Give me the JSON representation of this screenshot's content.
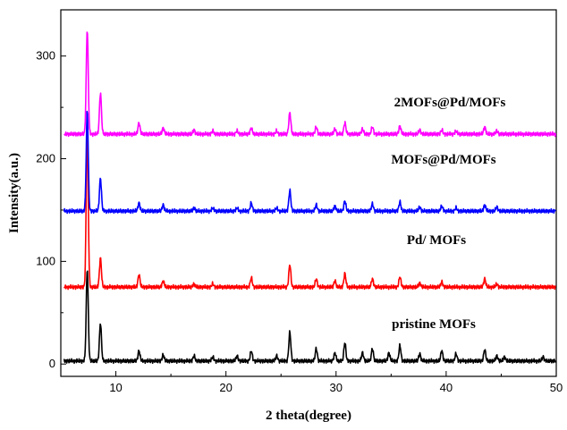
{
  "chart_data": {
    "type": "line",
    "title": "",
    "xlabel": "2 theta(degree)",
    "ylabel": "Intensity(a.u.)",
    "xlim": [
      5,
      50
    ],
    "ylim": [
      -12,
      345
    ],
    "xticks": [
      10,
      20,
      30,
      40,
      50
    ],
    "yticks": [
      0,
      100,
      200,
      300
    ],
    "grid": false,
    "legend": "inline labels beside each curve",
    "series": [
      {
        "name": "pristine MOFs",
        "label": "pristine MOFs",
        "color": "#000000",
        "baseline": 3,
        "peaks": [
          [
            7.4,
            90
          ],
          [
            8.6,
            37
          ],
          [
            12.1,
            10
          ],
          [
            14.3,
            6
          ],
          [
            17.1,
            5
          ],
          [
            18.8,
            4
          ],
          [
            21.0,
            5
          ],
          [
            22.3,
            10
          ],
          [
            24.6,
            5
          ],
          [
            25.8,
            28
          ],
          [
            28.2,
            12
          ],
          [
            29.9,
            8
          ],
          [
            30.8,
            18
          ],
          [
            32.4,
            8
          ],
          [
            33.3,
            12
          ],
          [
            34.8,
            8
          ],
          [
            35.8,
            15
          ],
          [
            37.6,
            7
          ],
          [
            39.6,
            10
          ],
          [
            40.9,
            7
          ],
          [
            43.5,
            11
          ],
          [
            44.6,
            5
          ],
          [
            45.3,
            4
          ],
          [
            48.8,
            4
          ]
        ]
      },
      {
        "name": "Pd/ MOFs",
        "label": "Pd/ MOFs",
        "color": "#ff0000",
        "baseline": 75,
        "peaks": [
          [
            7.4,
            155
          ],
          [
            8.6,
            28
          ],
          [
            12.1,
            12
          ],
          [
            14.3,
            6
          ],
          [
            17.1,
            3
          ],
          [
            18.8,
            3
          ],
          [
            22.3,
            9
          ],
          [
            25.8,
            22
          ],
          [
            28.2,
            8
          ],
          [
            29.9,
            6
          ],
          [
            30.8,
            13
          ],
          [
            33.3,
            8
          ],
          [
            35.8,
            10
          ],
          [
            37.6,
            4
          ],
          [
            39.6,
            5
          ],
          [
            43.5,
            8
          ],
          [
            44.6,
            3
          ]
        ]
      },
      {
        "name": "MOFs@Pd/MOFs",
        "label": "MOFs@Pd/MOFs",
        "color": "#0000ff",
        "baseline": 149,
        "peaks": [
          [
            7.4,
            98
          ],
          [
            8.6,
            32
          ],
          [
            12.1,
            8
          ],
          [
            14.3,
            6
          ],
          [
            17.1,
            3
          ],
          [
            18.8,
            3
          ],
          [
            21.0,
            3
          ],
          [
            22.3,
            8
          ],
          [
            24.6,
            3
          ],
          [
            25.8,
            20
          ],
          [
            28.2,
            6
          ],
          [
            29.9,
            5
          ],
          [
            30.8,
            10
          ],
          [
            33.3,
            7
          ],
          [
            35.8,
            9
          ],
          [
            37.6,
            4
          ],
          [
            39.6,
            5
          ],
          [
            40.9,
            3
          ],
          [
            43.5,
            6
          ],
          [
            44.6,
            4
          ]
        ]
      },
      {
        "name": "2MOFs@Pd/MOFs",
        "label": "2MOFs@Pd/MOFs",
        "color": "#ff00ff",
        "baseline": 224,
        "peaks": [
          [
            7.4,
            102
          ],
          [
            8.6,
            40
          ],
          [
            12.1,
            11
          ],
          [
            14.3,
            6
          ],
          [
            17.1,
            4
          ],
          [
            18.8,
            3
          ],
          [
            21.0,
            3
          ],
          [
            22.3,
            6
          ],
          [
            24.6,
            3
          ],
          [
            25.8,
            21
          ],
          [
            28.2,
            7
          ],
          [
            29.9,
            5
          ],
          [
            30.8,
            11
          ],
          [
            32.4,
            5
          ],
          [
            33.3,
            7
          ],
          [
            35.8,
            8
          ],
          [
            37.6,
            4
          ],
          [
            39.6,
            4
          ],
          [
            40.9,
            3
          ],
          [
            43.5,
            7
          ],
          [
            44.6,
            3
          ]
        ]
      }
    ]
  }
}
